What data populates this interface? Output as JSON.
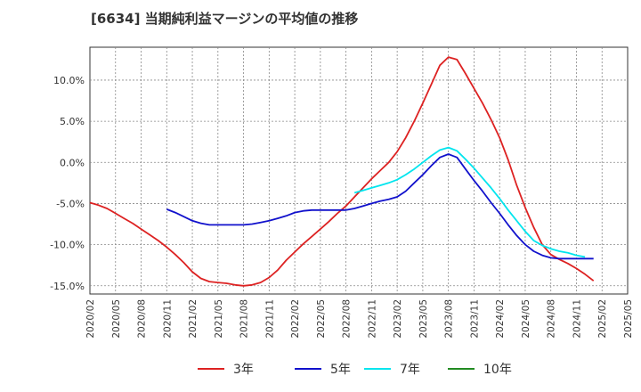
{
  "title": "[6634]  当期純利益マージンの平均値の推移",
  "chart_data": {
    "type": "line",
    "title": "[6634]  当期純利益マージンの平均値の推移",
    "xlabel": "",
    "ylabel": "",
    "ylim": [
      -16,
      14
    ],
    "grid": true,
    "legend_position": "bottom",
    "x": [
      "2020/02",
      "2020/05",
      "2020/08",
      "2020/11",
      "2021/02",
      "2021/05",
      "2021/08",
      "2021/11",
      "2022/02",
      "2022/05",
      "2022/08",
      "2022/11",
      "2023/02",
      "2023/05",
      "2023/08",
      "2023/11",
      "2024/02",
      "2024/05",
      "2024/08",
      "2024/11",
      "2025/02",
      "2025/05"
    ],
    "y_ticks": [
      {
        "value": 10,
        "label": "10.0%"
      },
      {
        "value": 5,
        "label": "5.0%"
      },
      {
        "value": 0,
        "label": "0.0%"
      },
      {
        "value": -5,
        "label": "-5.0%"
      },
      {
        "value": -10,
        "label": "-10.0%"
      },
      {
        "value": -15,
        "label": "-15.0%"
      }
    ],
    "series": [
      {
        "name": "3年",
        "color": "#dd2222",
        "points": [
          [
            "2020/02",
            -4.9
          ],
          [
            "2020/03",
            -5.2
          ],
          [
            "2020/04",
            -5.6
          ],
          [
            "2020/05",
            -6.2
          ],
          [
            "2020/06",
            -6.8
          ],
          [
            "2020/07",
            -7.4
          ],
          [
            "2020/08",
            -8.1
          ],
          [
            "2020/09",
            -8.8
          ],
          [
            "2020/10",
            -9.5
          ],
          [
            "2020/11",
            -10.3
          ],
          [
            "2020/12",
            -11.2
          ],
          [
            "2021/01",
            -12.2
          ],
          [
            "2021/02",
            -13.3
          ],
          [
            "2021/03",
            -14.1
          ],
          [
            "2021/04",
            -14.5
          ],
          [
            "2021/05",
            -14.6
          ],
          [
            "2021/06",
            -14.7
          ],
          [
            "2021/07",
            -14.9
          ],
          [
            "2021/08",
            -15.0
          ],
          [
            "2021/09",
            -14.9
          ],
          [
            "2021/10",
            -14.6
          ],
          [
            "2021/11",
            -14.0
          ],
          [
            "2021/12",
            -13.1
          ],
          [
            "2022/01",
            -11.9
          ],
          [
            "2022/02",
            -10.9
          ],
          [
            "2022/03",
            -9.9
          ],
          [
            "2022/04",
            -9.0
          ],
          [
            "2022/05",
            -8.1
          ],
          [
            "2022/06",
            -7.2
          ],
          [
            "2022/07",
            -6.2
          ],
          [
            "2022/08",
            -5.3
          ],
          [
            "2022/09",
            -4.2
          ],
          [
            "2022/10",
            -3.1
          ],
          [
            "2022/11",
            -2.0
          ],
          [
            "2022/12",
            -1.0
          ],
          [
            "2023/01",
            0.0
          ],
          [
            "2023/02",
            1.3
          ],
          [
            "2023/03",
            3.0
          ],
          [
            "2023/04",
            5.0
          ],
          [
            "2023/05",
            7.2
          ],
          [
            "2023/06",
            9.5
          ],
          [
            "2023/07",
            11.8
          ],
          [
            "2023/08",
            12.8
          ],
          [
            "2023/09",
            12.5
          ],
          [
            "2023/10",
            10.8
          ],
          [
            "2023/11",
            9.0
          ],
          [
            "2023/12",
            7.2
          ],
          [
            "2024/01",
            5.2
          ],
          [
            "2024/02",
            3.0
          ],
          [
            "2024/03",
            0.3
          ],
          [
            "2024/04",
            -2.8
          ],
          [
            "2024/05",
            -5.5
          ],
          [
            "2024/06",
            -7.9
          ],
          [
            "2024/07",
            -10.0
          ],
          [
            "2024/08",
            -11.2
          ],
          [
            "2024/09",
            -11.8
          ],
          [
            "2024/10",
            -12.3
          ],
          [
            "2024/11",
            -12.9
          ],
          [
            "2024/12",
            -13.6
          ],
          [
            "2025/01",
            -14.4
          ]
        ]
      },
      {
        "name": "5年",
        "color": "#1111cc",
        "points": [
          [
            "2020/11",
            -5.7
          ],
          [
            "2020/12",
            -6.1
          ],
          [
            "2021/01",
            -6.6
          ],
          [
            "2021/02",
            -7.1
          ],
          [
            "2021/03",
            -7.4
          ],
          [
            "2021/04",
            -7.6
          ],
          [
            "2021/05",
            -7.6
          ],
          [
            "2021/06",
            -7.6
          ],
          [
            "2021/07",
            -7.6
          ],
          [
            "2021/08",
            -7.6
          ],
          [
            "2021/09",
            -7.5
          ],
          [
            "2021/10",
            -7.3
          ],
          [
            "2021/11",
            -7.1
          ],
          [
            "2021/12",
            -6.8
          ],
          [
            "2022/01",
            -6.5
          ],
          [
            "2022/02",
            -6.1
          ],
          [
            "2022/03",
            -5.9
          ],
          [
            "2022/04",
            -5.8
          ],
          [
            "2022/05",
            -5.8
          ],
          [
            "2022/06",
            -5.8
          ],
          [
            "2022/07",
            -5.8
          ],
          [
            "2022/08",
            -5.8
          ],
          [
            "2022/09",
            -5.6
          ],
          [
            "2022/10",
            -5.3
          ],
          [
            "2022/11",
            -5.0
          ],
          [
            "2022/12",
            -4.7
          ],
          [
            "2023/01",
            -4.5
          ],
          [
            "2023/02",
            -4.2
          ],
          [
            "2023/03",
            -3.5
          ],
          [
            "2023/04",
            -2.5
          ],
          [
            "2023/05",
            -1.5
          ],
          [
            "2023/06",
            -0.4
          ],
          [
            "2023/07",
            0.6
          ],
          [
            "2023/08",
            1.0
          ],
          [
            "2023/09",
            0.6
          ],
          [
            "2023/10",
            -0.8
          ],
          [
            "2023/11",
            -2.2
          ],
          [
            "2023/12",
            -3.5
          ],
          [
            "2024/01",
            -4.9
          ],
          [
            "2024/02",
            -6.2
          ],
          [
            "2024/03",
            -7.6
          ],
          [
            "2024/04",
            -8.9
          ],
          [
            "2024/05",
            -10.0
          ],
          [
            "2024/06",
            -10.8
          ],
          [
            "2024/07",
            -11.3
          ],
          [
            "2024/08",
            -11.6
          ],
          [
            "2024/09",
            -11.7
          ],
          [
            "2024/10",
            -11.7
          ],
          [
            "2024/11",
            -11.7
          ],
          [
            "2024/12",
            -11.7
          ],
          [
            "2025/01",
            -11.7
          ]
        ]
      },
      {
        "name": "7年",
        "color": "#00e5ee",
        "points": [
          [
            "2022/09",
            -3.7
          ],
          [
            "2022/10",
            -3.4
          ],
          [
            "2022/11",
            -3.1
          ],
          [
            "2022/12",
            -2.8
          ],
          [
            "2023/01",
            -2.5
          ],
          [
            "2023/02",
            -2.1
          ],
          [
            "2023/03",
            -1.5
          ],
          [
            "2023/04",
            -0.8
          ],
          [
            "2023/05",
            0.0
          ],
          [
            "2023/06",
            0.8
          ],
          [
            "2023/07",
            1.5
          ],
          [
            "2023/08",
            1.8
          ],
          [
            "2023/09",
            1.4
          ],
          [
            "2023/10",
            0.4
          ],
          [
            "2023/11",
            -0.7
          ],
          [
            "2023/12",
            -1.9
          ],
          [
            "2024/01",
            -3.1
          ],
          [
            "2024/02",
            -4.4
          ],
          [
            "2024/03",
            -5.8
          ],
          [
            "2024/04",
            -7.1
          ],
          [
            "2024/05",
            -8.4
          ],
          [
            "2024/06",
            -9.5
          ],
          [
            "2024/07",
            -10.1
          ],
          [
            "2024/08",
            -10.5
          ],
          [
            "2024/09",
            -10.8
          ],
          [
            "2024/10",
            -11.0
          ],
          [
            "2024/11",
            -11.3
          ],
          [
            "2024/12",
            -11.5
          ]
        ]
      },
      {
        "name": "10年",
        "color": "#228b22",
        "points": []
      }
    ]
  }
}
